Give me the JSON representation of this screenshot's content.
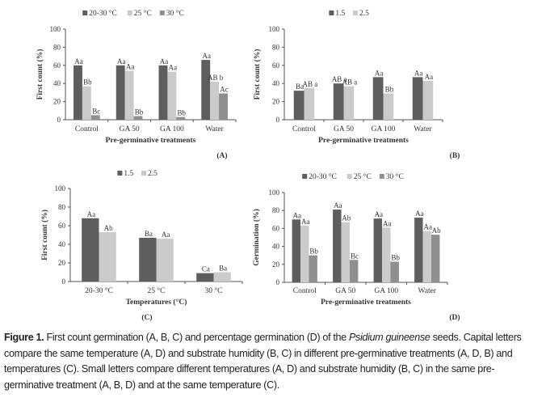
{
  "caption": {
    "label": "Figure 1.",
    "text_before_italic": " First count germination (A, B, C) and percentage germination (D) of the ",
    "italic": "Psidium guineense",
    "text_after_italic": " seeds. Capital letters compare the same temperature (A, D) and substrate humidity (B, C) in different pre-germinative treatments (A, D, B) and temperatures (C). Small letters compare different temperatures (A, D) and substrate humidity (B, C) in the same pre-germinative treatment (A, B, D) and at the same temperature (C)."
  },
  "colors": {
    "dark": "#5e5e5e",
    "light": "#cbcbcb",
    "mid": "#8f8f8f"
  },
  "chart_data": [
    {
      "panel": "(A)",
      "type": "bar",
      "title": "",
      "xlabel": "Pre-germinative treatments",
      "ylabel": "First count (%)",
      "ylim": [
        0,
        100
      ],
      "yticks": [
        0,
        20,
        40,
        60,
        80,
        100
      ],
      "legend_position": "top",
      "categories": [
        "Control",
        "GA 50",
        "GA 100",
        "Water"
      ],
      "series": [
        {
          "name": "20-30 °C",
          "color": "dark",
          "values": [
            60,
            60,
            60,
            66
          ],
          "labels": [
            "Aa",
            "Aa",
            "Aa",
            "Aa"
          ]
        },
        {
          "name": "25 °C",
          "color": "light",
          "values": [
            37,
            54,
            53,
            42
          ],
          "labels": [
            "Bb",
            "Aa",
            "Aa",
            "AB b"
          ]
        },
        {
          "name": "30 °C",
          "color": "mid",
          "values": [
            5,
            4,
            3,
            29
          ],
          "labels": [
            "Bc",
            "Bb",
            "Bb",
            "Ac"
          ]
        }
      ]
    },
    {
      "panel": "(B)",
      "type": "bar",
      "title": "",
      "xlabel": "Pre-germinative treatments",
      "ylabel": "First count (%)",
      "ylim": [
        0,
        100
      ],
      "yticks": [
        0,
        20,
        40,
        60,
        80,
        100
      ],
      "legend_position": "top",
      "categories": [
        "Control",
        "GA 50",
        "GA 100",
        "Water"
      ],
      "series": [
        {
          "name": "1.5",
          "color": "dark",
          "values": [
            32,
            40,
            47,
            47
          ],
          "labels": [
            "Ba",
            "AB a",
            "Aa",
            "Aa"
          ]
        },
        {
          "name": "2.5",
          "color": "light",
          "values": [
            35,
            37,
            29,
            43
          ],
          "labels": [
            "AB a",
            "AB a",
            "Bb",
            "Aa"
          ]
        }
      ]
    },
    {
      "panel": "(C)",
      "type": "bar",
      "title": "",
      "xlabel": "Temperatures (°C)",
      "ylabel": "First count (%)",
      "ylim": [
        0,
        100
      ],
      "yticks": [
        0,
        20,
        40,
        60,
        80,
        100
      ],
      "legend_position": "top",
      "categories": [
        "20-30 °C",
        "25 °C",
        "30 °C"
      ],
      "series": [
        {
          "name": "1.5",
          "color": "dark",
          "values": [
            68,
            47,
            9
          ],
          "labels": [
            "Aa",
            "Ba",
            "Ca"
          ]
        },
        {
          "name": "2.5",
          "color": "light",
          "values": [
            53,
            46,
            10
          ],
          "labels": [
            "Ab",
            "Aa",
            "Ba"
          ]
        }
      ]
    },
    {
      "panel": "(D)",
      "type": "bar",
      "title": "",
      "xlabel": "Pre-germinative treatments",
      "ylabel": "Germination (%)",
      "ylim": [
        0,
        100
      ],
      "yticks": [
        0,
        20,
        40,
        60,
        80,
        100
      ],
      "legend_position": "top",
      "categories": [
        "Control",
        "GA 50",
        "GA 100",
        "Water"
      ],
      "series": [
        {
          "name": "20-30 °C",
          "color": "dark",
          "values": [
            70,
            81,
            71,
            72
          ],
          "labels": [
            "Aa",
            "Aa",
            "Aa",
            "Aa"
          ]
        },
        {
          "name": "25 °C",
          "color": "light",
          "values": [
            63,
            67,
            61,
            57
          ],
          "labels": [
            "Aa",
            "Ab",
            "Aa",
            "Aa"
          ]
        },
        {
          "name": "30 °C",
          "color": "mid",
          "values": [
            30,
            25,
            23,
            53
          ],
          "labels": [
            "Bb",
            "Bc",
            "Bb",
            "Ab"
          ]
        }
      ]
    }
  ]
}
